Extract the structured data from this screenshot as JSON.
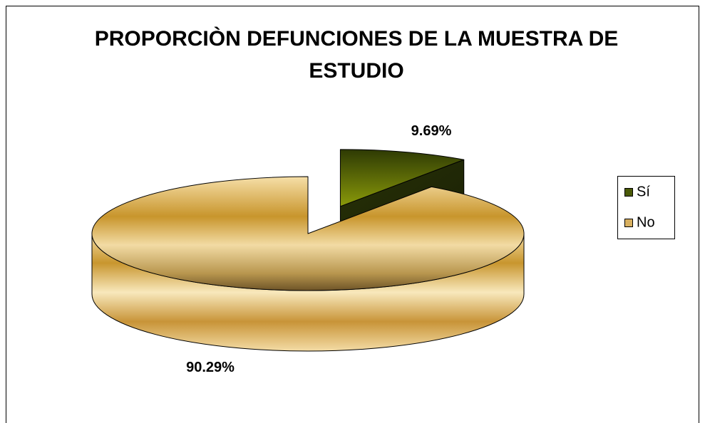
{
  "chart_data": {
    "type": "pie",
    "title": "PROPORCIÒN DEFUNCIONES DE LA MUESTRA DE ESTUDIO",
    "categories": [
      "Sí",
      "No"
    ],
    "values": [
      9.69,
      90.29
    ],
    "value_labels": [
      "9.69%",
      "90.29%"
    ],
    "colors": [
      "#4a5a08",
      "#d8b060"
    ],
    "exploded": [
      true,
      false
    ],
    "legend": "right"
  }
}
